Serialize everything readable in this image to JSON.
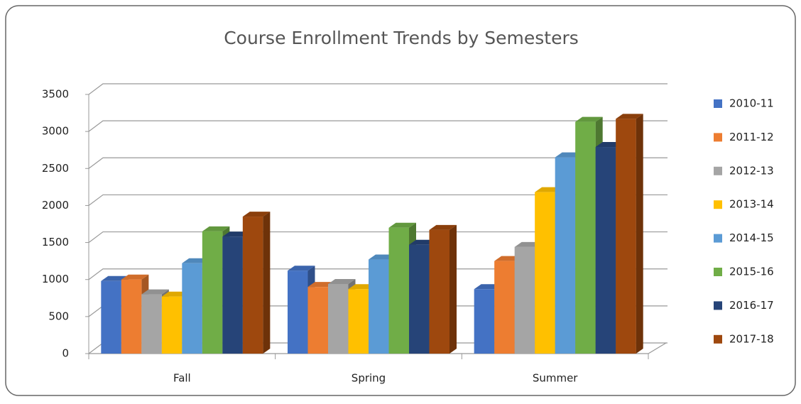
{
  "chart_data": {
    "type": "bar3d",
    "title": "Course Enrollment Trends by Semesters",
    "categories": [
      "Fall",
      "Spring",
      "Summer"
    ],
    "series": [
      {
        "name": "2010-11",
        "color": "#4472c4",
        "values": [
          980,
          1120,
          870
        ]
      },
      {
        "name": "2011-12",
        "color": "#ed7d31",
        "values": [
          1000,
          900,
          1250
        ]
      },
      {
        "name": "2012-13",
        "color": "#a5a5a5",
        "values": [
          800,
          940,
          1440
        ]
      },
      {
        "name": "2013-14",
        "color": "#ffc000",
        "values": [
          770,
          870,
          2180
        ]
      },
      {
        "name": "2014-15",
        "color": "#5b9bd5",
        "values": [
          1220,
          1270,
          2650
        ]
      },
      {
        "name": "2015-16",
        "color": "#70ad47",
        "values": [
          1650,
          1700,
          3130
        ]
      },
      {
        "name": "2016-17",
        "color": "#264478",
        "values": [
          1580,
          1470,
          2790
        ]
      },
      {
        "name": "2017-18",
        "color": "#9e480e",
        "values": [
          1850,
          1670,
          3170
        ]
      }
    ],
    "ylim": [
      0,
      3500
    ],
    "yticks": [
      0,
      500,
      1000,
      1500,
      2000,
      2500,
      3000,
      3500
    ],
    "grid": true,
    "legend": "right"
  }
}
